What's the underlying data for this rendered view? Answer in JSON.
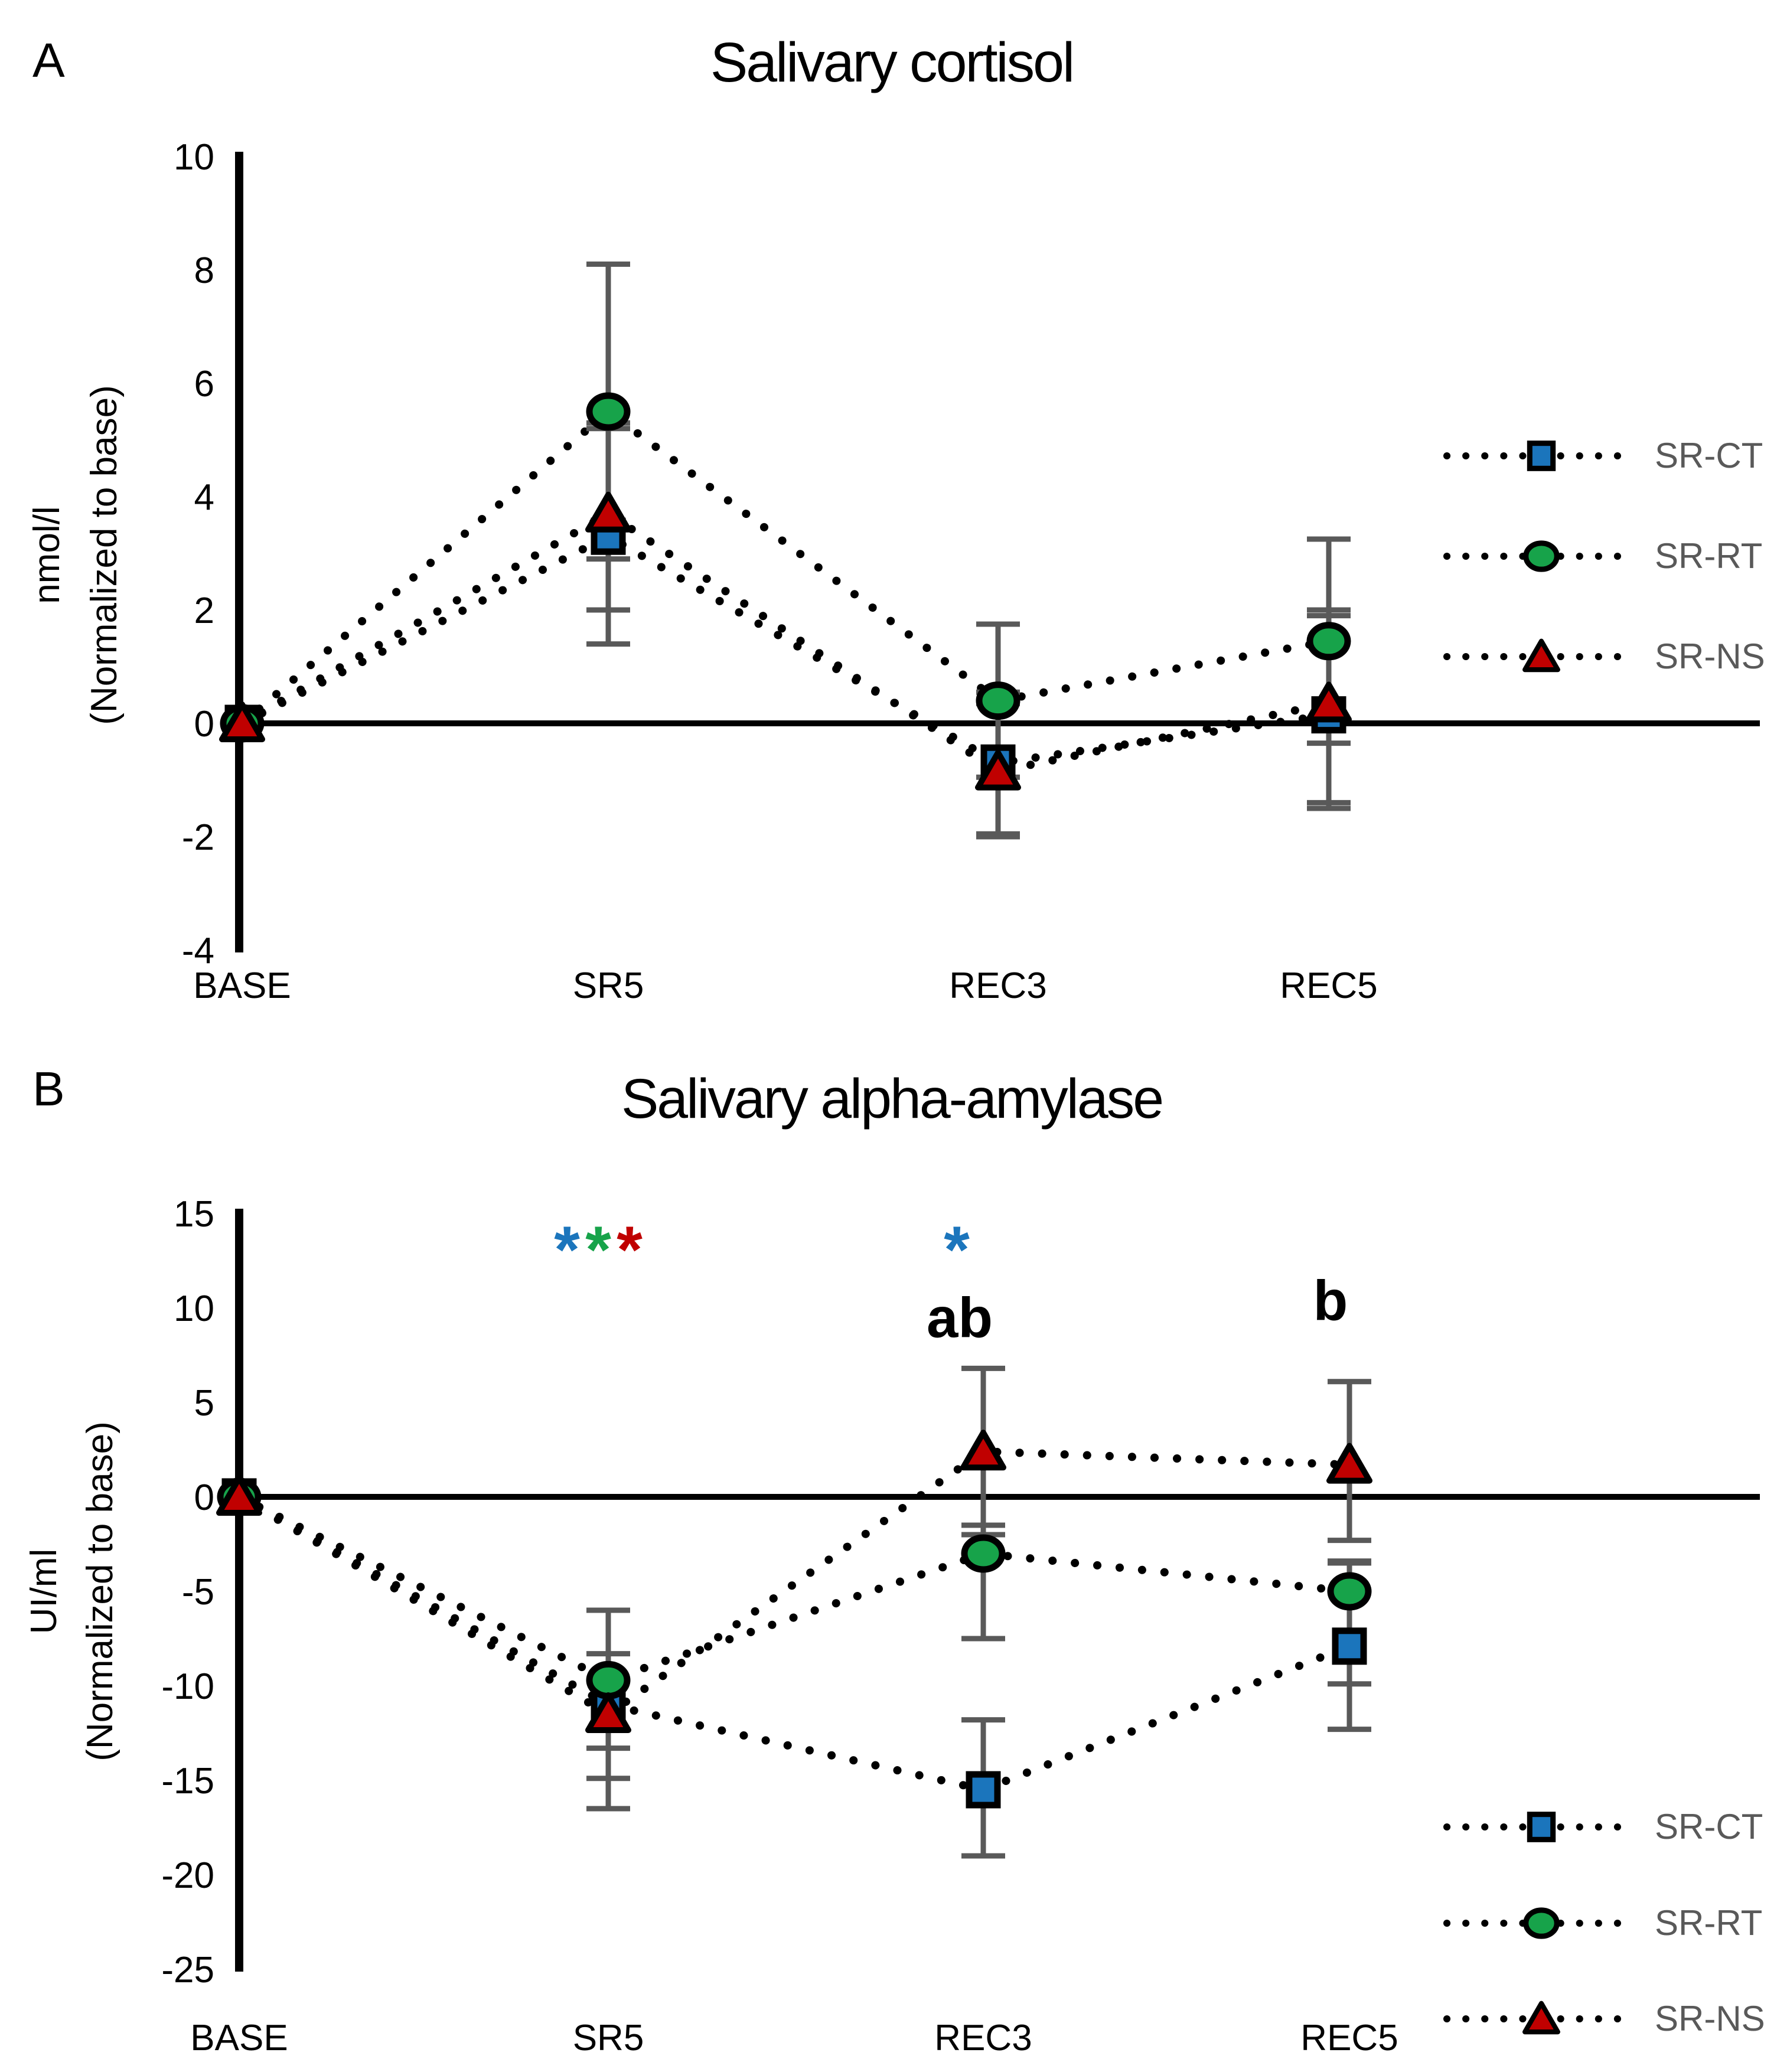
{
  "figure": {
    "panel_a_letter": "A",
    "panel_b_letter": "B",
    "legend_text_color": "#595959",
    "error_bar_color": "#595959",
    "marker_outline_color": "#000000",
    "line_style": "dotted-black"
  },
  "chart_data": [
    {
      "type": "line",
      "panel": "A",
      "title": "Salivary cortisol",
      "ylabel_line1": "nmol/l",
      "ylabel_line2": "(Normalized to base)",
      "xlabel": "",
      "categories": [
        "BASE",
        "SR5",
        "REC3",
        "REC5"
      ],
      "ylim": [
        -4,
        10
      ],
      "ytick_step": 2,
      "yticks": [
        10,
        8,
        6,
        4,
        2,
        0,
        -2,
        -4
      ],
      "grid": false,
      "legend_position": "right",
      "series": [
        {
          "name": "SR-CT",
          "marker": "square",
          "color": "#1B75BC",
          "values": [
            0,
            3.3,
            -0.7,
            0.15
          ],
          "err_plus": [
            0,
            1.9,
            1.25,
            1.75
          ],
          "err_minus": [
            0,
            1.9,
            1.25,
            1.65
          ]
        },
        {
          "name": "SR-RT",
          "marker": "circle",
          "color": "#17A34A",
          "values": [
            0,
            5.5,
            0.4,
            1.45
          ],
          "err_plus": [
            0,
            2.6,
            1.35,
            1.8
          ],
          "err_minus": [
            0,
            2.6,
            1.35,
            1.8
          ]
        },
        {
          "name": "SR-NS",
          "marker": "triangle",
          "color": "#C00000",
          "values": [
            0,
            3.7,
            -0.85,
            0.35
          ],
          "err_plus": [
            0,
            1.6,
            1.2,
            1.65
          ],
          "err_minus": [
            0,
            1.7,
            1.15,
            1.75
          ]
        }
      ],
      "annotations": []
    },
    {
      "type": "line",
      "panel": "B",
      "title": "Salivary alpha-amylase",
      "ylabel_line1": "UI/ml",
      "ylabel_line2": "(Normalized to base)",
      "xlabel": "",
      "categories": [
        "BASE",
        "SR5",
        "REC3",
        "REC5"
      ],
      "ylim": [
        -25,
        15
      ],
      "ytick_step": 5,
      "yticks": [
        15,
        10,
        5,
        0,
        -5,
        -10,
        -15,
        -20,
        -25
      ],
      "grid": false,
      "legend_position": "bottom-right",
      "series": [
        {
          "name": "SR-CT",
          "marker": "square",
          "color": "#1B75BC",
          "values": [
            0,
            -11.0,
            -15.5,
            -7.9
          ],
          "err_plus": [
            0,
            5.0,
            3.7,
            4.4
          ],
          "err_minus": [
            0,
            3.9,
            3.5,
            4.4
          ]
        },
        {
          "name": "SR-RT",
          "marker": "circle",
          "color": "#17A34A",
          "values": [
            0,
            -9.7,
            -3.0,
            -5.0
          ],
          "err_plus": [
            0,
            3.7,
            1.5,
            1.6
          ],
          "err_minus": [
            0,
            3.6,
            4.5,
            4.9
          ]
        },
        {
          "name": "SR-NS",
          "marker": "triangle",
          "color": "#C00000",
          "values": [
            0,
            -11.5,
            2.4,
            1.7
          ],
          "err_plus": [
            0,
            3.2,
            4.4,
            4.4
          ],
          "err_minus": [
            0,
            5.0,
            4.4,
            4.0
          ]
        }
      ],
      "annotations": [
        {
          "text": "*",
          "color": "#1B75BC",
          "cat": 1,
          "dx": -70,
          "y": 13.9,
          "fs": 112,
          "bold": true,
          "bshift": 0.58
        },
        {
          "text": "*",
          "color": "#17A34A",
          "cat": 1,
          "dx": -17,
          "y": 13.9,
          "fs": 112,
          "bold": true,
          "bshift": 0.58
        },
        {
          "text": "*",
          "color": "#C00000",
          "cat": 1,
          "dx": 36,
          "y": 13.9,
          "fs": 112,
          "bold": true,
          "bshift": 0.58
        },
        {
          "text": "*",
          "color": "#1B75BC",
          "cat": 2,
          "dx": -45,
          "y": 13.9,
          "fs": 112,
          "bold": true,
          "bshift": 0.58
        },
        {
          "text": "ab",
          "color": "#000000",
          "cat": 2,
          "dx": -40,
          "y": 9.6,
          "fs": 96,
          "bold": true,
          "bshift": 0.38
        },
        {
          "text": "b",
          "color": "#000000",
          "cat": 3,
          "dx": -32,
          "y": 10.5,
          "fs": 96,
          "bold": true,
          "bshift": 0.38
        }
      ]
    }
  ]
}
